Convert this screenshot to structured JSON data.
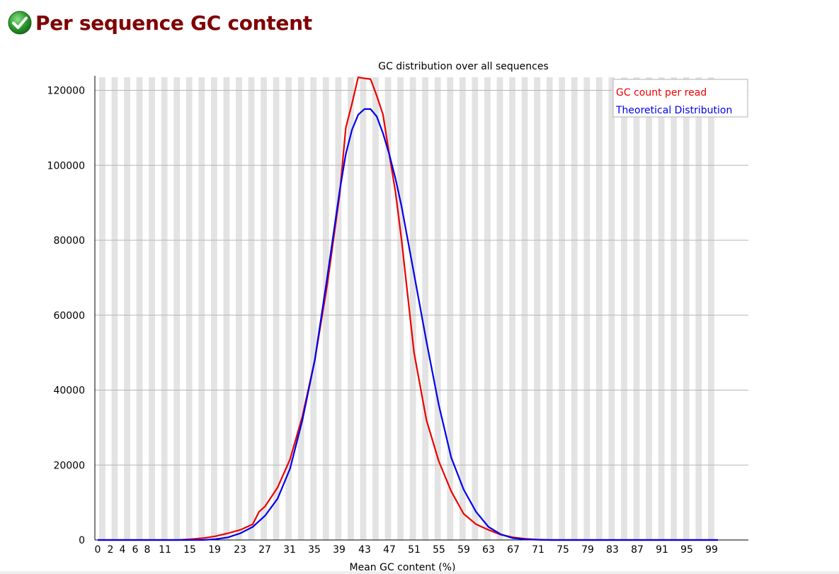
{
  "header": {
    "title": "Per sequence GC content",
    "status_icon": "check-circle-icon",
    "status_color": "#2e9d2e"
  },
  "chart_data": {
    "type": "line",
    "title": "GC distribution over all sequences",
    "xlabel": "Mean GC content (%)",
    "ylabel": "",
    "xlim": [
      0,
      100
    ],
    "ylim": [
      0,
      123500
    ],
    "x_tick_labels": [
      "0",
      "2",
      "4",
      "6",
      "8",
      "11",
      "15",
      "19",
      "23",
      "27",
      "31",
      "35",
      "39",
      "43",
      "47",
      "51",
      "55",
      "59",
      "63",
      "67",
      "71",
      "75",
      "79",
      "83",
      "87",
      "91",
      "95",
      "99"
    ],
    "y_ticks": [
      0,
      20000,
      40000,
      60000,
      80000,
      100000,
      120000
    ],
    "y_tick_labels": [
      "0",
      "20000",
      "40000",
      "60000",
      "80000",
      "100000",
      "120000"
    ],
    "grid": "horizontal lines with alternating vertical grey bands",
    "legend_position": "top-right",
    "series": [
      {
        "name": "GC count per read",
        "color": "#ee0000",
        "x": [
          0,
          2,
          4,
          6,
          8,
          11,
          13,
          15,
          17,
          19,
          21,
          23,
          25,
          26,
          27,
          29,
          31,
          33,
          35,
          37,
          39,
          40,
          41,
          42,
          43,
          44,
          45,
          46,
          47,
          48,
          49,
          51,
          53,
          55,
          57,
          59,
          61,
          63,
          65,
          67,
          69,
          71,
          73,
          75,
          79,
          83,
          87,
          91,
          95,
          99,
          100
        ],
        "y": [
          0,
          0,
          0,
          0,
          0,
          0,
          0,
          200,
          500,
          1000,
          1800,
          2700,
          4200,
          7500,
          9000,
          14000,
          21500,
          33000,
          48000,
          68000,
          92000,
          110000,
          116500,
          123500,
          123200,
          123000,
          118500,
          113500,
          103000,
          93000,
          80000,
          50000,
          32000,
          21000,
          13000,
          7000,
          4200,
          2700,
          1400,
          700,
          300,
          100,
          0,
          0,
          0,
          0,
          0,
          0,
          0,
          0,
          0
        ]
      },
      {
        "name": "Theoretical Distribution",
        "color": "#0000ee",
        "x": [
          0,
          2,
          4,
          6,
          8,
          11,
          13,
          15,
          17,
          19,
          21,
          23,
          25,
          27,
          29,
          31,
          33,
          35,
          37,
          39,
          40,
          41,
          42,
          43,
          44,
          45,
          46,
          47,
          48,
          49,
          51,
          53,
          55,
          57,
          59,
          61,
          63,
          65,
          67,
          69,
          71,
          73,
          75,
          79,
          83,
          87,
          91,
          95,
          99,
          100
        ],
        "y": [
          0,
          0,
          0,
          0,
          0,
          0,
          0,
          0,
          0,
          200,
          700,
          1800,
          3500,
          6500,
          11000,
          19000,
          32000,
          48000,
          70000,
          93000,
          103000,
          109500,
          113500,
          115000,
          115000,
          113000,
          108500,
          103000,
          96500,
          89000,
          71000,
          53000,
          36000,
          22000,
          13500,
          7500,
          3500,
          1500,
          500,
          150,
          50,
          0,
          0,
          0,
          0,
          0,
          0,
          0,
          0,
          0
        ]
      }
    ]
  }
}
